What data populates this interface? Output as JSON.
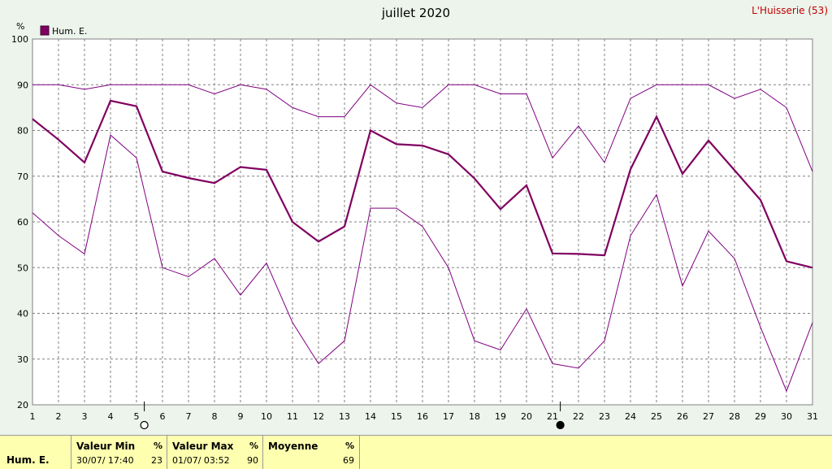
{
  "chart_data": {
    "type": "line",
    "title": "juillet 2020",
    "location": "L'Huisserie (53)",
    "ylabel": "%",
    "ylim": [
      20,
      100
    ],
    "yticks": [
      20,
      30,
      40,
      50,
      60,
      70,
      80,
      90,
      100
    ],
    "x": [
      1,
      2,
      3,
      4,
      5,
      6,
      7,
      8,
      9,
      10,
      11,
      12,
      13,
      14,
      15,
      16,
      17,
      18,
      19,
      20,
      21,
      22,
      23,
      24,
      25,
      26,
      27,
      28,
      29,
      30,
      31
    ],
    "grid": true,
    "legend_position": "top-left",
    "series": [
      {
        "name": "Hum. E.",
        "role": "mean",
        "color": "#800060",
        "values": [
          82.5,
          78,
          73,
          86.5,
          85.3,
          71,
          69.6,
          68.5,
          72,
          71.4,
          60,
          55.7,
          59,
          80,
          77,
          76.7,
          74.8,
          69.5,
          62.8,
          68,
          53.1,
          53,
          52.7,
          71.5,
          83,
          70.5,
          77.8,
          71.3,
          64.8,
          51.4,
          50
        ]
      },
      {
        "role": "max",
        "color": "#800080",
        "values": [
          90,
          90,
          89,
          90,
          90,
          90,
          90,
          88,
          90,
          89,
          85,
          83,
          83,
          90,
          86,
          85,
          90,
          90,
          88,
          88,
          74,
          81,
          73,
          87,
          90,
          90,
          90,
          87,
          89,
          85,
          71
        ]
      },
      {
        "role": "min",
        "color": "#800080",
        "values": [
          62,
          57,
          53,
          79,
          74,
          50,
          48,
          52,
          44,
          51,
          38,
          29,
          34,
          63,
          63,
          59,
          50,
          34,
          32,
          41,
          29,
          28,
          34,
          57,
          66,
          46,
          58,
          52,
          37,
          23,
          38
        ]
      }
    ],
    "moon_phases": [
      {
        "day": 5,
        "phase": "full-moon-icon"
      },
      {
        "day": 21,
        "phase": "new-moon-icon"
      }
    ]
  },
  "stats": {
    "row_label": "Hum. E.",
    "min": {
      "label": "Valeur Min",
      "unit": "%",
      "time": "30/07/  17:40",
      "value": "23"
    },
    "max": {
      "label": "Valeur Max",
      "unit": "%",
      "time": "01/07/  03:52",
      "value": "90"
    },
    "avg": {
      "label": "Moyenne",
      "unit": "%",
      "value": "69"
    }
  }
}
